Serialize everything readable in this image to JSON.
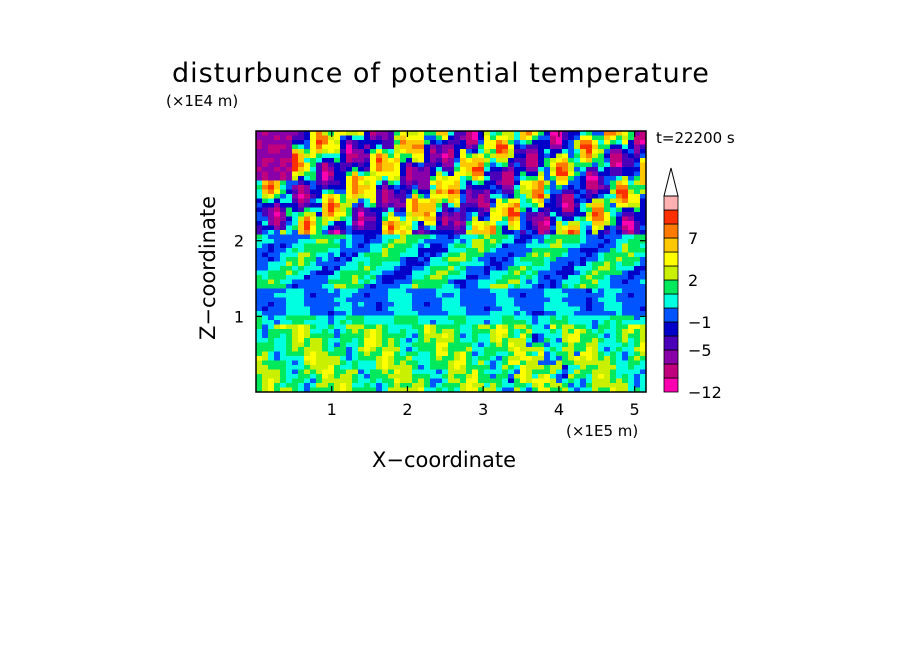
{
  "chart_data": {
    "type": "heatmap",
    "title": "disturbunce of potential temperature",
    "time_label": "t=22200 s",
    "xlabel": "X−coordinate",
    "ylabel": "Z−coordinate",
    "x_unit": "(×1E5 m)",
    "y_unit": "(×1E4 m)",
    "xlim": [
      0,
      5.15
    ],
    "ylim": [
      0,
      3.45
    ],
    "x_ticks": [
      {
        "value": 1,
        "label": "1"
      },
      {
        "value": 2,
        "label": "2"
      },
      {
        "value": 3,
        "label": "3"
      },
      {
        "value": 4,
        "label": "4"
      },
      {
        "value": 5,
        "label": "5"
      }
    ],
    "y_ticks": [
      {
        "value": 1,
        "label": "1"
      },
      {
        "value": 2,
        "label": "2"
      }
    ],
    "colorbar": {
      "levels": [
        -12,
        -9,
        -7,
        -5,
        -3,
        -1,
        0,
        1,
        2,
        3,
        5,
        7,
        9,
        11
      ],
      "tick_labels": [
        {
          "value": -12,
          "label": "−12"
        },
        {
          "value": -5,
          "label": "−5"
        },
        {
          "value": -1,
          "label": "−1"
        },
        {
          "value": 2,
          "label": "2"
        },
        {
          "value": 7,
          "label": "7"
        }
      ],
      "colors": [
        "#ff00b0",
        "#c0007c",
        "#8a00a8",
        "#4a00b8",
        "#0000c8",
        "#0054ff",
        "#00ffe0",
        "#00e85c",
        "#c8f000",
        "#ffff00",
        "#ffc800",
        "#ff7a00",
        "#ff3000",
        "#ffb0b0"
      ],
      "extend": "max"
    },
    "regions": [
      {
        "z_range": [
          0,
          0.9
        ],
        "dominant_range": [
          0.5,
          3
        ],
        "description_value": "warm yellow/orange layer"
      },
      {
        "z_range": [
          0.9,
          1.4
        ],
        "dominant_range": [
          -1,
          0.5
        ]
      },
      {
        "z_range": [
          1.4,
          2.1
        ],
        "dominant_range": [
          -1,
          2
        ]
      },
      {
        "z_range": [
          2.1,
          3.45
        ],
        "dominant_range": [
          -7,
          9
        ]
      }
    ]
  }
}
